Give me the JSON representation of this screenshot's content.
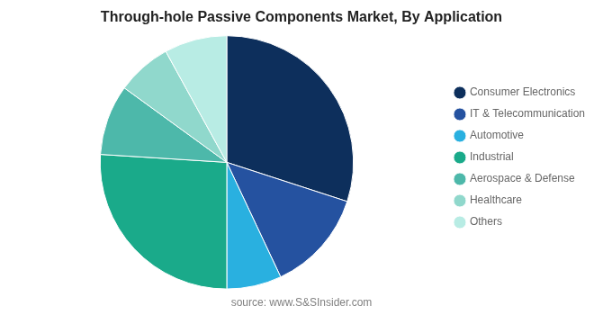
{
  "chart_data": {
    "type": "pie",
    "title": "Through-hole Passive Components Market, By Application",
    "annotations": [
      "source: www.S&SInsider.com"
    ],
    "categories": [
      "Consumer Electronics",
      "IT & Telecommunication",
      "Automotive",
      "Industrial",
      "Aerospace & Defense",
      "Healthcare",
      "Others"
    ],
    "values": [
      30,
      13,
      7,
      26,
      9,
      7,
      8
    ],
    "colors": [
      "#0d2f5c",
      "#2552a0",
      "#29b0e0",
      "#1aaa8a",
      "#4db8aa",
      "#90d8cc",
      "#b8ece4"
    ],
    "legend": "right"
  }
}
